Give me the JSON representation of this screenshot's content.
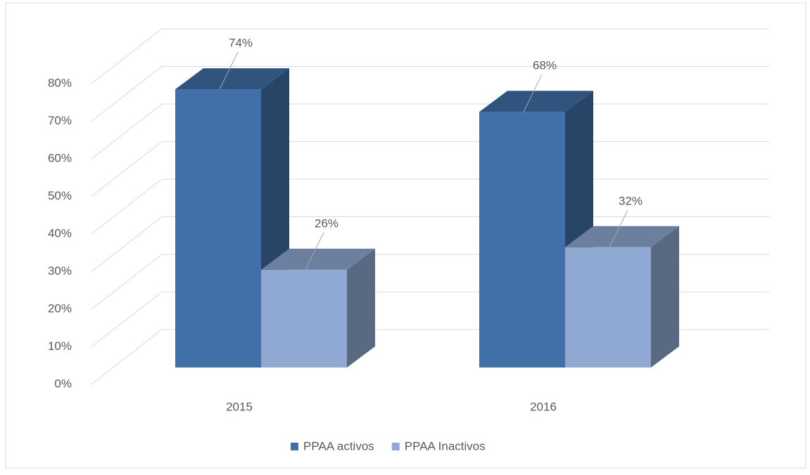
{
  "chart_data": {
    "type": "bar3d",
    "categories": [
      "2015",
      "2016"
    ],
    "series": [
      {
        "name": "PPAA activos",
        "color": "#4170a8",
        "values": [
          74,
          68
        ],
        "value_labels": [
          "74%",
          "68%"
        ]
      },
      {
        "name": "PPAA Inactivos",
        "color": "#90a9d2",
        "values": [
          26,
          32
        ],
        "value_labels": [
          "26%",
          "32%"
        ]
      }
    ],
    "ylim": [
      0,
      80
    ],
    "yticks": [
      {
        "value": 0,
        "label": "0%"
      },
      {
        "value": 10,
        "label": "10%"
      },
      {
        "value": 20,
        "label": "20%"
      },
      {
        "value": 30,
        "label": "30%"
      },
      {
        "value": 40,
        "label": "40%"
      },
      {
        "value": 50,
        "label": "50%"
      },
      {
        "value": 60,
        "label": "60%"
      },
      {
        "value": 70,
        "label": "70%"
      },
      {
        "value": 80,
        "label": "80%"
      }
    ],
    "grid": true,
    "legend": "bottom"
  }
}
